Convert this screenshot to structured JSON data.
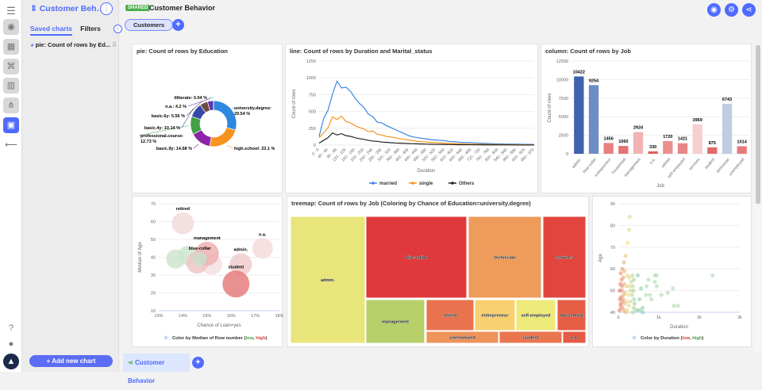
{
  "sidebar": {
    "title": "Customer Behavior",
    "tabs": [
      "Saved charts",
      "Filters"
    ],
    "active_tab": "Saved charts",
    "items": [
      {
        "label": "pie: Count of rows by Ed..."
      }
    ],
    "add_button": "Add new chart"
  },
  "header": {
    "badge": "SHARED",
    "title": "Customer Behavior",
    "chip": "Customers"
  },
  "bottom_tabs": [
    {
      "label": "Customer Behavior"
    }
  ],
  "colors": {
    "accent": "#4f6bff",
    "shared": "#4caf50"
  },
  "chart_data": [
    {
      "type": "pie",
      "title": "pie: Count of rows by Education",
      "donut": true,
      "slices": [
        {
          "label": "university.degree",
          "value": 29.54,
          "color": "#2f87e0"
        },
        {
          "label": "high.school",
          "value": 23.1,
          "color": "#f7941d"
        },
        {
          "label": "basic.9y",
          "value": 14.68,
          "color": "#8e24aa"
        },
        {
          "label": "professional.course",
          "value": 12.73,
          "color": "#43a047"
        },
        {
          "label": "basic.4y",
          "value": 10.14,
          "color": "#3949ab"
        },
        {
          "label": "basic.6y",
          "value": 5.56,
          "color": "#6d4c41"
        },
        {
          "label": "n.a.",
          "value": 4.2,
          "color": "#5e35b1"
        },
        {
          "label": "illiterate",
          "value": 0.04,
          "color": "#26a69a"
        }
      ]
    },
    {
      "type": "line",
      "title": "line: Count of rows by Duration and Marital_status",
      "xlabel": "Duration",
      "ylabel": "Count of rows",
      "ylim": [
        0,
        1250
      ],
      "yticks": [
        0,
        250,
        500,
        750,
        1000,
        1250
      ],
      "categories": [
        "0 - 9",
        "20 - 29",
        "40 - 49",
        "60 - 69",
        "80 - 89",
        "100 - 109",
        "120 - 129",
        "140 - 149",
        "160 - 169",
        "180 - 189",
        "200 - 209",
        "220 - 229",
        "240 - 249",
        "260 - 269",
        "280 - 289",
        "300 - 309",
        "320 - 329",
        "340 - 349",
        "360 - 369",
        "380 - 389",
        "400 - 409",
        "420 - 429",
        "440 - 449",
        "460 - 469",
        "480 - 489",
        "500 - 509",
        "520 - 529",
        "540 - 549",
        "560 - 569",
        "580 - 589",
        "600 - 609",
        "620 - 629",
        "640 - 649",
        "660 - 669",
        "680 - 689",
        "700 - 709",
        "720 - 729",
        "740 - 749",
        "760 - 769",
        "780 - 789",
        "800 - 809",
        "820 - 829",
        "840 - 849",
        "860 - 869",
        "880 - 889",
        "900 - 909",
        "920 - 929",
        "940 - 949",
        "960 - 979"
      ],
      "series": [
        {
          "name": "married",
          "color": "#3a87e0",
          "values": [
            130,
            390,
            520,
            760,
            950,
            850,
            860,
            800,
            700,
            620,
            560,
            460,
            420,
            340,
            330,
            290,
            260,
            230,
            200,
            170,
            140,
            120,
            110,
            100,
            90,
            80,
            75,
            70,
            65,
            55,
            50,
            45,
            40,
            38,
            35,
            30,
            28,
            25,
            22,
            20,
            18,
            16,
            15,
            14,
            13,
            12,
            11,
            10,
            9
          ]
        },
        {
          "name": "single",
          "color": "#f7941d",
          "values": [
            110,
            180,
            260,
            420,
            380,
            430,
            350,
            330,
            290,
            260,
            240,
            200,
            210,
            160,
            150,
            130,
            120,
            110,
            95,
            85,
            75,
            65,
            55,
            50,
            45,
            40,
            35,
            32,
            28,
            25,
            22,
            20,
            18,
            16,
            14,
            12,
            11,
            10,
            9,
            8,
            7,
            6,
            6,
            5,
            5,
            4,
            4,
            3,
            3
          ]
        },
        {
          "name": "Others",
          "color": "#222222",
          "values": [
            30,
            70,
            110,
            180,
            150,
            170,
            140,
            130,
            110,
            95,
            85,
            70,
            60,
            55,
            45,
            40,
            35,
            30,
            28,
            25,
            22,
            20,
            18,
            16,
            14,
            12,
            11,
            10,
            9,
            8,
            7,
            6,
            6,
            5,
            5,
            4,
            4,
            3,
            3,
            3,
            2,
            2,
            2,
            2,
            1,
            1,
            1,
            1,
            1
          ]
        }
      ],
      "legend": "bottom"
    },
    {
      "type": "bar",
      "title": "column: Count of rows by Job",
      "xlabel": "Job",
      "ylabel": "Count of rows",
      "ylim": [
        0,
        12500
      ],
      "yticks": [
        0,
        2500,
        5000,
        7500,
        10000,
        12500
      ],
      "categories": [
        "admin.",
        "blue-collar",
        "entrepreneur",
        "housemaid",
        "management",
        "n.a.",
        "retired",
        "self-employed",
        "services",
        "student",
        "technician",
        "unemployed"
      ],
      "values": [
        10422,
        9254,
        1456,
        1060,
        2924,
        330,
        1720,
        1421,
        3969,
        875,
        6743,
        1014
      ],
      "colors": [
        "#3f62ad",
        "#6b8cc4",
        "#e88080",
        "#e57373",
        "#f2b3b3",
        "#e35c5c",
        "#ec8f8f",
        "#e88585",
        "#f6d0d0",
        "#e36a6a",
        "#bfcde3",
        "#e87a7a"
      ]
    },
    {
      "type": "scatter",
      "title": "",
      "xlabel": "Chance of Loan=yes",
      "ylabel": "Median of Age",
      "xlim": [
        13,
        18
      ],
      "ylim": [
        10,
        70
      ],
      "xticks": [
        "13%",
        "14%",
        "15%",
        "16%",
        "17%",
        "18%"
      ],
      "yticks": [
        10,
        20,
        30,
        40,
        50,
        60,
        70
      ],
      "legend": {
        "text": "Color by Median of Row number (",
        "low": "low",
        ",": ", ",
        "high": "high",
        "end": ")"
      },
      "points": [
        {
          "label": "retired",
          "x": 14.0,
          "y": 59,
          "size": 14,
          "color": "#f3dada"
        },
        {
          "label": "",
          "x": 13.7,
          "y": 39,
          "size": 12,
          "color": "#cfe5cf"
        },
        {
          "label": "",
          "x": 14.2,
          "y": 41,
          "size": 12,
          "color": "#cfe5cf"
        },
        {
          "label": "",
          "x": 15.2,
          "y": 36,
          "size": 13,
          "color": "#f3e0e0"
        },
        {
          "label": "",
          "x": 14.6,
          "y": 37,
          "size": 14,
          "color": "#f0c6c6"
        },
        {
          "label": "management",
          "x": 15.0,
          "y": 42,
          "size": 15,
          "color": "#eeb0b0"
        },
        {
          "label": "blue-collar",
          "x": 14.7,
          "y": 39,
          "size": 9,
          "color": "#c9dfc9"
        },
        {
          "label": "admin.",
          "x": 16.4,
          "y": 36,
          "size": 14,
          "color": "#f1cccc"
        },
        {
          "label": "n.a.",
          "x": 17.3,
          "y": 45,
          "size": 13,
          "color": "#f5dada"
        },
        {
          "label": "student",
          "x": 16.2,
          "y": 25,
          "size": 17,
          "color": "#e57c7c"
        }
      ]
    },
    {
      "type": "treemap",
      "title": "treemap: Count of rows by Job (Coloring by Chance of Education=university.degree)",
      "cells": [
        {
          "label": "admin.",
          "value": 10422,
          "color": "#e8e57a"
        },
        {
          "label": "blue-collar",
          "value": 9254,
          "color": "#e0393c"
        },
        {
          "label": "technician",
          "value": 6743,
          "color": "#ee9b5b"
        },
        {
          "label": "services",
          "value": 3969,
          "color": "#e1453e"
        },
        {
          "label": "management",
          "value": 2924,
          "color": "#b7d06a"
        },
        {
          "label": "retired",
          "value": 1720,
          "color": "#e9724f"
        },
        {
          "label": "entrepreneur",
          "value": 1456,
          "color": "#f8d070"
        },
        {
          "label": "self-employed",
          "value": 1421,
          "color": "#eeea7a"
        },
        {
          "label": "housemaid",
          "value": 1060,
          "color": "#e55d45"
        },
        {
          "label": "unemployed",
          "value": 1014,
          "color": "#ee935a"
        },
        {
          "label": "student",
          "value": 875,
          "color": "#ea764f"
        },
        {
          "label": "n.a.",
          "value": 330,
          "color": "#e45a45"
        }
      ]
    },
    {
      "type": "scatter",
      "title": "",
      "xlabel": "Duration",
      "ylabel": "Age",
      "xlim": [
        0,
        3000
      ],
      "ylim": [
        40,
        90
      ],
      "xticks": [
        "0",
        "1k",
        "2k",
        "3k"
      ],
      "yticks": [
        40,
        50,
        60,
        70,
        80,
        90
      ],
      "legend": {
        "text": "Color by Duration (",
        "low": "low",
        ",": ", ",
        "high": "high",
        "end": ")"
      },
      "points": [
        [
          280,
          84
        ],
        [
          270,
          78
        ],
        [
          230,
          72
        ],
        [
          180,
          66
        ],
        [
          140,
          63
        ],
        [
          100,
          60
        ],
        [
          60,
          58
        ],
        [
          150,
          59
        ],
        [
          220,
          57
        ],
        [
          120,
          56
        ],
        [
          80,
          55
        ],
        [
          50,
          53
        ],
        [
          150,
          53
        ],
        [
          200,
          52
        ],
        [
          90,
          50
        ],
        [
          30,
          50
        ],
        [
          130,
          48
        ],
        [
          70,
          47
        ],
        [
          40,
          46
        ],
        [
          110,
          45
        ],
        [
          160,
          44
        ],
        [
          60,
          43
        ],
        [
          100,
          42
        ],
        [
          140,
          41
        ],
        [
          180,
          40
        ],
        [
          30,
          41
        ],
        [
          220,
          41
        ],
        [
          260,
          43
        ],
        [
          300,
          45
        ],
        [
          250,
          48
        ],
        [
          300,
          50
        ],
        [
          280,
          52
        ],
        [
          320,
          54
        ],
        [
          270,
          56
        ],
        [
          350,
          57
        ],
        [
          480,
          57
        ],
        [
          380,
          55
        ],
        [
          360,
          52
        ],
        [
          370,
          50
        ],
        [
          340,
          48
        ],
        [
          390,
          46
        ],
        [
          400,
          44
        ],
        [
          380,
          42
        ],
        [
          360,
          40
        ],
        [
          450,
          41
        ],
        [
          520,
          41
        ],
        [
          600,
          42
        ],
        [
          600,
          40
        ],
        [
          520,
          46
        ],
        [
          560,
          51
        ],
        [
          680,
          48
        ],
        [
          700,
          52
        ],
        [
          740,
          55
        ],
        [
          780,
          48
        ],
        [
          820,
          46
        ],
        [
          900,
          54
        ],
        [
          900,
          57
        ],
        [
          950,
          57
        ],
        [
          950,
          52
        ],
        [
          1060,
          48
        ],
        [
          1220,
          49
        ],
        [
          1350,
          51
        ],
        [
          1370,
          43
        ],
        [
          1470,
          43
        ],
        [
          2330,
          57
        ],
        [
          60,
          44
        ],
        [
          90,
          52
        ],
        [
          120,
          46
        ],
        [
          170,
          49
        ],
        [
          210,
          45
        ]
      ]
    }
  ]
}
